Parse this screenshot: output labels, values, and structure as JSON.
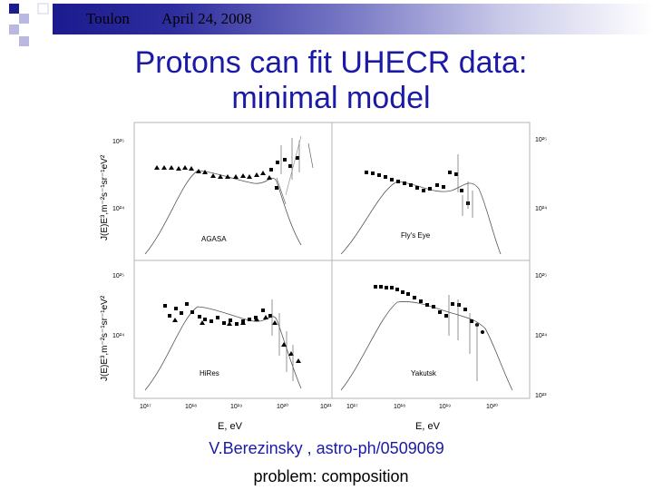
{
  "header": {
    "location": "Toulon",
    "date": "April 24, 2008"
  },
  "title_line1": "Protons can fit UHECR data:",
  "title_line2": "minimal model",
  "figure": {
    "y_axis_label": "J(E)E³,m⁻²s⁻¹sr⁻¹eV²",
    "x_axis_label": "E, eV",
    "x_tick_labels": [
      "10¹⁷",
      "10¹⁸",
      "10¹⁹",
      "10²⁰",
      "10²¹"
    ],
    "left_tick_labels": [
      "10²⁵",
      "10²⁴"
    ],
    "right_tick_labels": [
      "10²⁵",
      "10²⁴",
      "10²³"
    ],
    "panels": [
      {
        "name": "AGASA"
      },
      {
        "name": "Fly's Eye"
      },
      {
        "name": "HiRes"
      },
      {
        "name": "Yakutsk"
      }
    ]
  },
  "citation": "V.Berezinsky ,  astro-ph/0509069",
  "problem": "problem: composition",
  "colors": {
    "title": "#1a1aa6",
    "header_gradient_start": "#1b1b8f",
    "square_dark": "#1c1c8e",
    "square_light": "#b8b8e0"
  }
}
